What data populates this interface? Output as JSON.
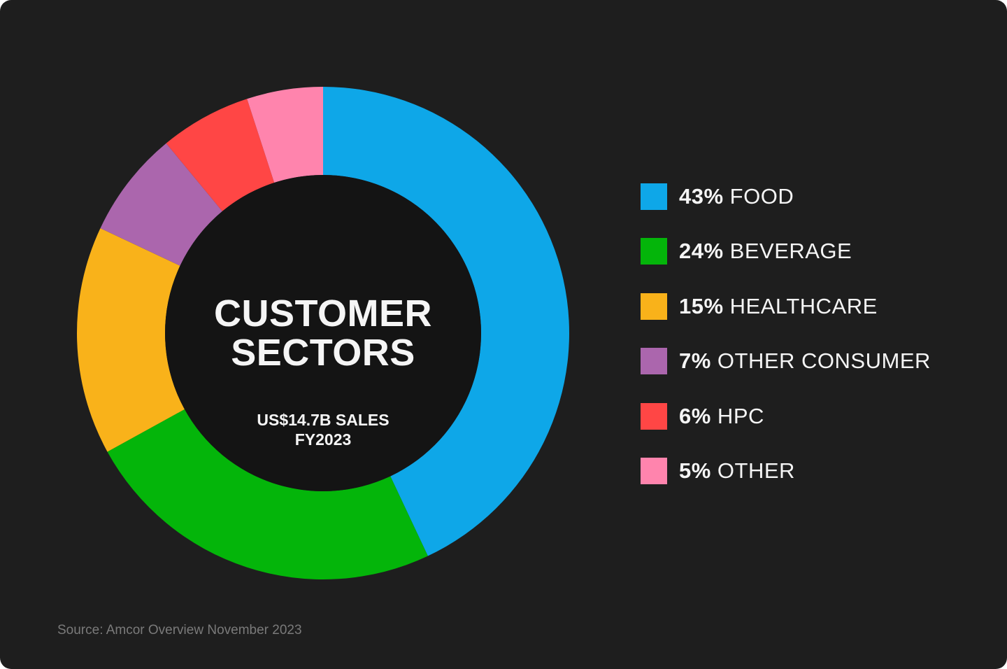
{
  "chart_data": {
    "type": "pie",
    "donut": true,
    "title": "CUSTOMER SECTORS",
    "title_lines": [
      "CUSTOMER",
      "SECTORS"
    ],
    "subtitle_lines": [
      "US$14.7B SALES",
      "FY2023"
    ],
    "legend_placement": "right",
    "slices": [
      {
        "pct_label": "43%",
        "label": "FOOD",
        "value": 43,
        "color": "#0ea7e8"
      },
      {
        "pct_label": "24%",
        "label": "BEVERAGE",
        "value": 24,
        "color": "#04b50a"
      },
      {
        "pct_label": "15%",
        "label": "HEALTHCARE",
        "value": 15,
        "color": "#f9b21a"
      },
      {
        "pct_label": "7%",
        "label": "OTHER CONSUMER",
        "value": 7,
        "color": "#ab66ad"
      },
      {
        "pct_label": "6%",
        "label": "HPC",
        "value": 6,
        "color": "#ff4645"
      },
      {
        "pct_label": "5%",
        "label": "OTHER",
        "value": 5,
        "color": "#ff84ad"
      }
    ],
    "source": "Source: Amcor Overview November 2023"
  }
}
